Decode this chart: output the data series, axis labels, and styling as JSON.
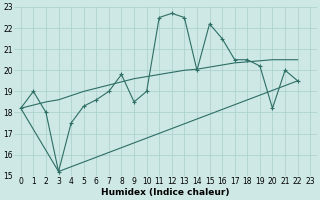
{
  "xlabel": "Humidex (Indice chaleur)",
  "xlim": [
    -0.5,
    23.5
  ],
  "ylim": [
    15,
    23
  ],
  "xticks": [
    0,
    1,
    2,
    3,
    4,
    5,
    6,
    7,
    8,
    9,
    10,
    11,
    12,
    13,
    14,
    15,
    16,
    17,
    18,
    19,
    20,
    21,
    22,
    23
  ],
  "yticks": [
    15,
    16,
    17,
    18,
    19,
    20,
    21,
    22,
    23
  ],
  "bg_color": "#cde8e5",
  "grid_color": "#aacfcc",
  "line_color": "#2d6e65",
  "line1_x": [
    0,
    1,
    2,
    3,
    4,
    5,
    6,
    7,
    8,
    9,
    10,
    11,
    12,
    13,
    14,
    15,
    16,
    17,
    18,
    19,
    20,
    21,
    22
  ],
  "line1_y": [
    18.2,
    19.0,
    18.0,
    15.2,
    17.5,
    18.3,
    18.6,
    19.0,
    19.8,
    18.5,
    19.0,
    22.5,
    22.7,
    22.5,
    20.0,
    22.2,
    21.5,
    20.5,
    20.5,
    20.2,
    18.2,
    20.0,
    19.5
  ],
  "line2_x": [
    0,
    2,
    3,
    4,
    5,
    6,
    7,
    8,
    9,
    10,
    11,
    12,
    13,
    14,
    15,
    16,
    17,
    18,
    19,
    20,
    21,
    22
  ],
  "line2_y": [
    18.2,
    18.5,
    18.6,
    18.8,
    19.0,
    19.15,
    19.3,
    19.45,
    19.6,
    19.7,
    19.8,
    19.9,
    20.0,
    20.05,
    20.15,
    20.25,
    20.35,
    20.4,
    20.45,
    20.5,
    20.5,
    20.5
  ],
  "line3_x": [
    0,
    3,
    22
  ],
  "line3_y": [
    18.2,
    15.2,
    19.5
  ]
}
